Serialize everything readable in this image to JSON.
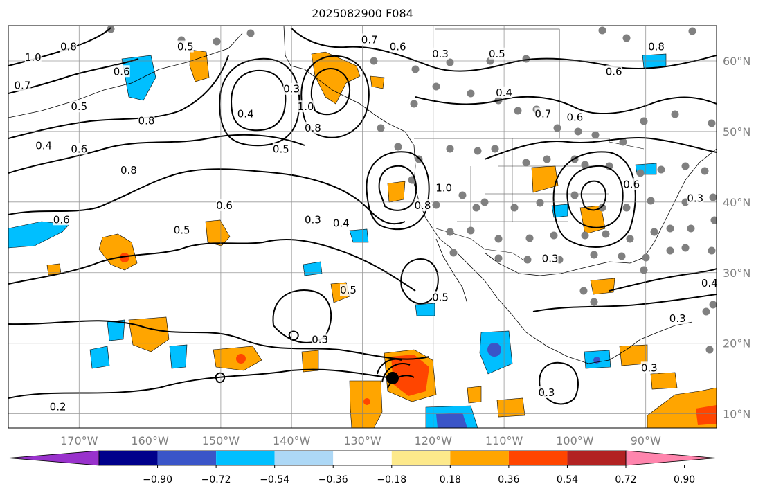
{
  "title": "2025082900 F084",
  "map": {
    "lon_range": [
      -180,
      -80
    ],
    "lat_range": [
      8,
      65
    ],
    "lon_ticks": [
      {
        "value": -170,
        "label": "170°W"
      },
      {
        "value": -160,
        "label": "160°W"
      },
      {
        "value": -150,
        "label": "150°W"
      },
      {
        "value": -140,
        "label": "140°W"
      },
      {
        "value": -130,
        "label": "130°W"
      },
      {
        "value": -120,
        "label": "120°W"
      },
      {
        "value": -110,
        "label": "110°W"
      },
      {
        "value": -100,
        "label": "100°W"
      },
      {
        "value": -90,
        "label": "90°W"
      }
    ],
    "lat_ticks": [
      {
        "value": 60,
        "label": "60°N"
      },
      {
        "value": 50,
        "label": "50°N"
      },
      {
        "value": 40,
        "label": "40°N"
      },
      {
        "value": 30,
        "label": "30°N"
      },
      {
        "value": 20,
        "label": "20°N"
      },
      {
        "value": 10,
        "label": "10°N"
      }
    ],
    "grid": true,
    "contour_labels": [
      {
        "text": "1.0",
        "lon": -176.5,
        "lat": 60.5
      },
      {
        "text": "0.8",
        "lon": -171.5,
        "lat": 62
      },
      {
        "text": "0.7",
        "lon": -178,
        "lat": 56.5
      },
      {
        "text": "0.6",
        "lon": -164,
        "lat": 58.5
      },
      {
        "text": "0.5",
        "lon": -170,
        "lat": 53.5
      },
      {
        "text": "0.5",
        "lon": -155,
        "lat": 62
      },
      {
        "text": "0.4",
        "lon": -175,
        "lat": 48
      },
      {
        "text": "0.6",
        "lon": -170,
        "lat": 47.5
      },
      {
        "text": "0.8",
        "lon": -160.5,
        "lat": 51.5
      },
      {
        "text": "0.8",
        "lon": -163,
        "lat": 44.5
      },
      {
        "text": "0.3",
        "lon": -140,
        "lat": 56
      },
      {
        "text": "0.4",
        "lon": -146.5,
        "lat": 52.5
      },
      {
        "text": "0.5",
        "lon": -141.5,
        "lat": 47.5
      },
      {
        "text": "1.0",
        "lon": -138,
        "lat": 53.5
      },
      {
        "text": "0.8",
        "lon": -137,
        "lat": 50.5
      },
      {
        "text": "0.7",
        "lon": -129,
        "lat": 63
      },
      {
        "text": "0.6",
        "lon": -125,
        "lat": 62
      },
      {
        "text": "0.3",
        "lon": -119,
        "lat": 61
      },
      {
        "text": "0.5",
        "lon": -111,
        "lat": 61
      },
      {
        "text": "0.6",
        "lon": -94.5,
        "lat": 58.5
      },
      {
        "text": "0.8",
        "lon": -88.5,
        "lat": 62
      },
      {
        "text": "0.4",
        "lon": -110,
        "lat": 55.5
      },
      {
        "text": "0.7",
        "lon": -104.5,
        "lat": 52.5
      },
      {
        "text": "0.6",
        "lon": -100,
        "lat": 52
      },
      {
        "text": "0.6",
        "lon": -92,
        "lat": 42.5
      },
      {
        "text": "0.3",
        "lon": -83,
        "lat": 40.5
      },
      {
        "text": "0.6",
        "lon": -149.5,
        "lat": 39.5
      },
      {
        "text": "0.6",
        "lon": -172.5,
        "lat": 37.5
      },
      {
        "text": "0.5",
        "lon": -155.5,
        "lat": 36
      },
      {
        "text": "0.3",
        "lon": -137,
        "lat": 37.5
      },
      {
        "text": "0.4",
        "lon": -133,
        "lat": 37
      },
      {
        "text": "0.8",
        "lon": -121.5,
        "lat": 39.5
      },
      {
        "text": "1.0",
        "lon": -118.5,
        "lat": 42
      },
      {
        "text": "0.3",
        "lon": -103.5,
        "lat": 32
      },
      {
        "text": "0.5",
        "lon": -132,
        "lat": 27.5
      },
      {
        "text": "0.5",
        "lon": -119,
        "lat": 26.5
      },
      {
        "text": "0.4",
        "lon": -81,
        "lat": 28.5
      },
      {
        "text": "0.3",
        "lon": -85.5,
        "lat": 23.5
      },
      {
        "text": "0.3",
        "lon": -136,
        "lat": 20.5
      },
      {
        "text": "0.3",
        "lon": -89.5,
        "lat": 16.5
      },
      {
        "text": "0.3",
        "lon": -104,
        "lat": 13
      },
      {
        "text": "0.2",
        "lon": -173,
        "lat": 11
      }
    ]
  },
  "colorbar": {
    "tick_labels": [
      "−0.90",
      "−0.72",
      "−0.54",
      "−0.36",
      "−0.18",
      "0.18",
      "0.36",
      "0.54",
      "0.72",
      "0.90"
    ],
    "colors": [
      "#9932cc",
      "#00008b",
      "#3a55c8",
      "#00bfff",
      "#add8f6",
      "#ffffff",
      "#fde98b",
      "#ffa500",
      "#ff4500",
      "#b22222",
      "#ff85ad"
    ]
  }
}
